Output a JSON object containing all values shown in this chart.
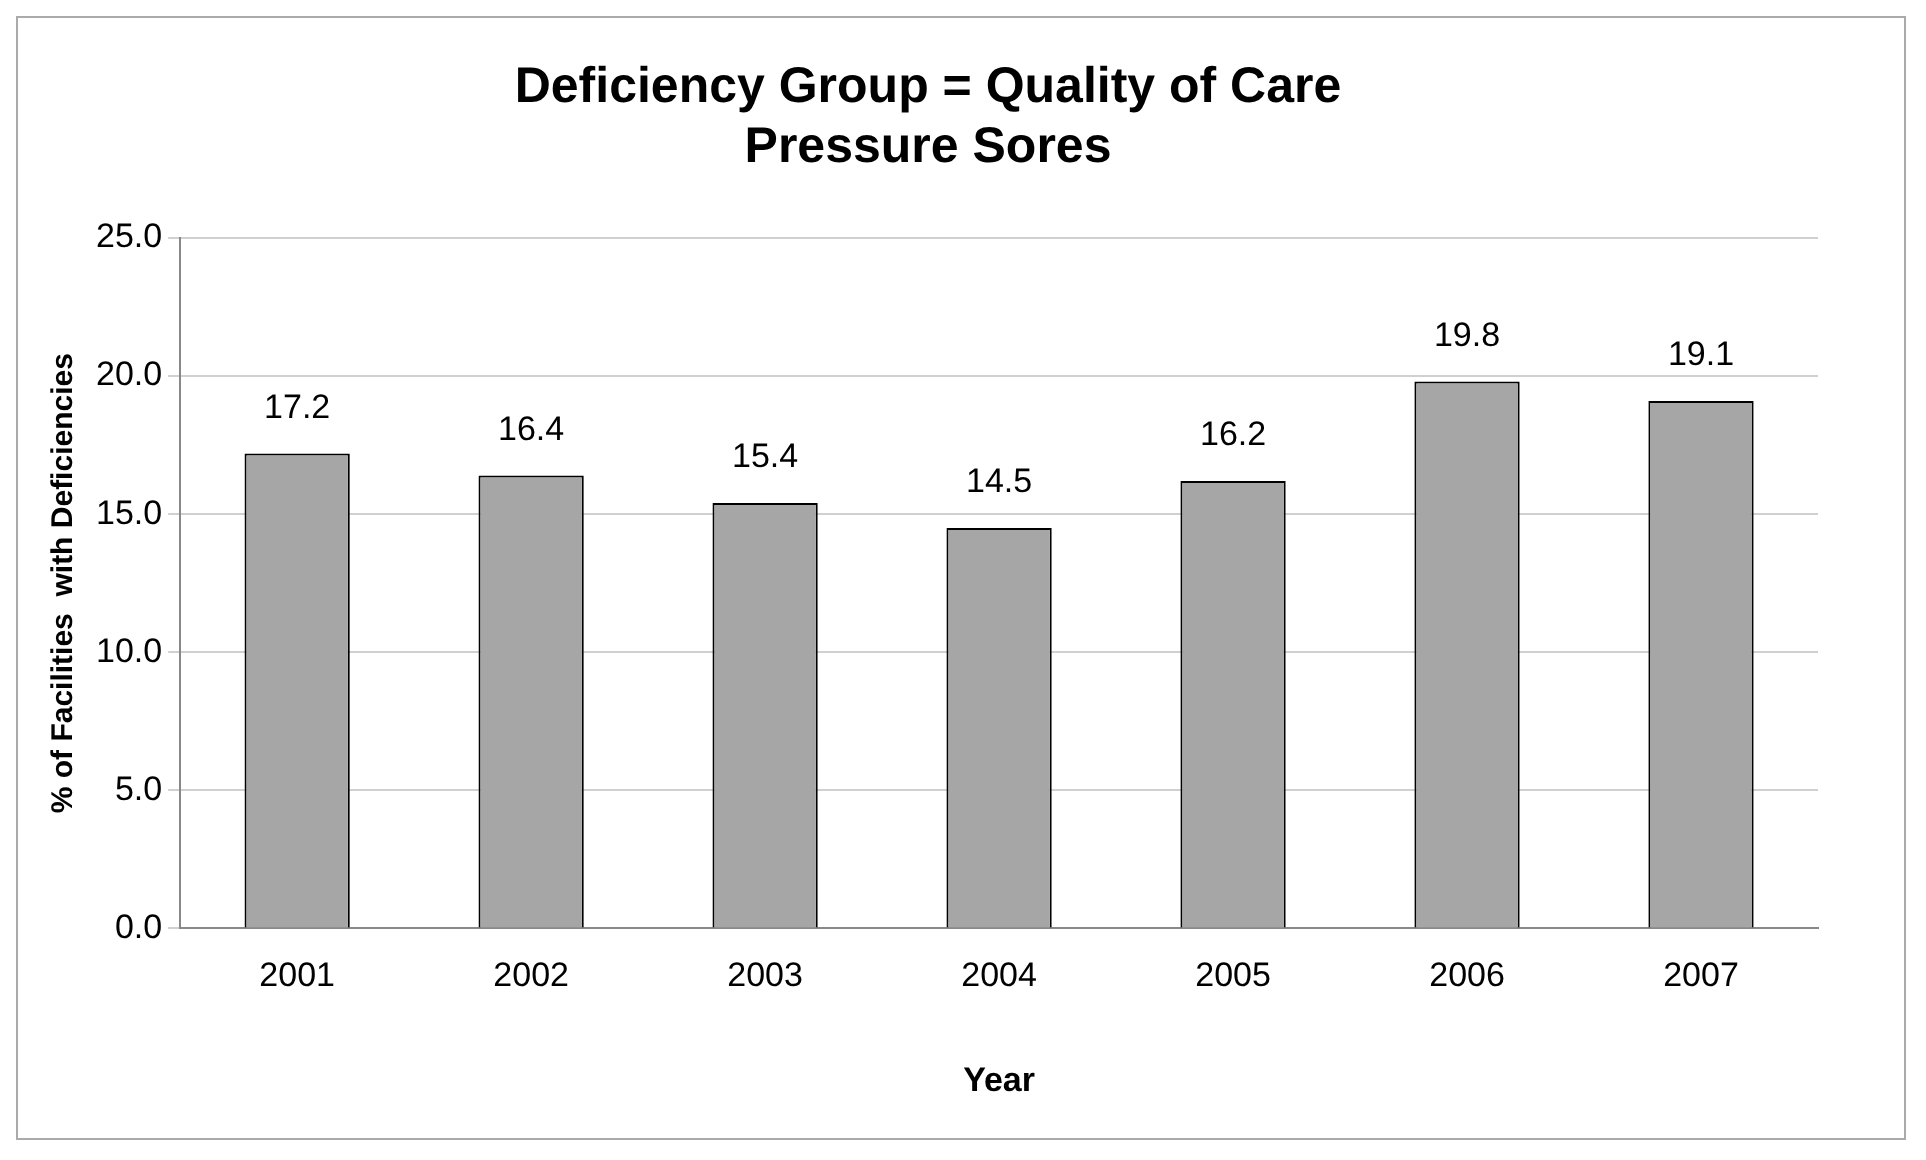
{
  "chart_data": {
    "type": "bar",
    "title": "Deficiency Group = Quality of Care\nPressure Sores",
    "xlabel": "Year",
    "ylabel": "% of Facilities  with Deficiencies",
    "categories": [
      "2001",
      "2002",
      "2003",
      "2004",
      "2005",
      "2006",
      "2007"
    ],
    "values": [
      17.2,
      16.4,
      15.4,
      14.5,
      16.2,
      19.8,
      19.1
    ],
    "color": "#a6a6a6",
    "ylim": [
      0,
      25
    ],
    "yticks": [
      {
        "value": 0,
        "label": "0.0"
      },
      {
        "value": 5,
        "label": "5.0"
      },
      {
        "value": 10,
        "label": "10.0"
      },
      {
        "value": 15,
        "label": "15.0"
      },
      {
        "value": 20,
        "label": "20.0"
      },
      {
        "value": 25,
        "label": "25.0"
      }
    ],
    "grid": "y",
    "data_labels": true,
    "legend": false
  }
}
